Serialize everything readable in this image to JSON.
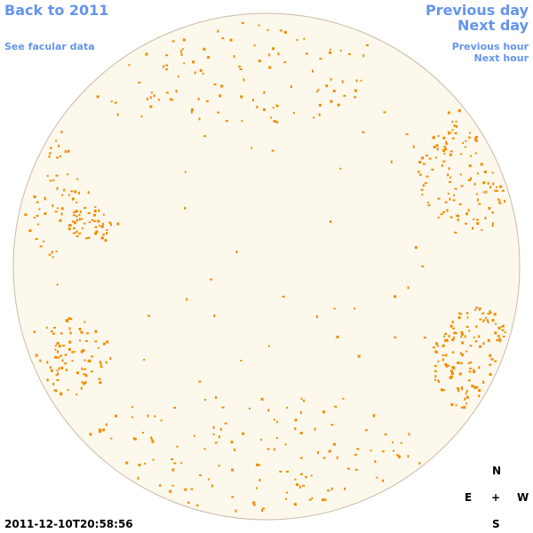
{
  "nav": {
    "back_label": "Back to 2011",
    "prev_day_label": "Previous day",
    "next_day_label": "Next day",
    "facular_label": "See facular data",
    "prev_hour_label": "Previous hour",
    "next_hour_label": "Next hour"
  },
  "compass": {
    "north": "N",
    "east": "E",
    "center": "+",
    "west": "W",
    "south": "S"
  },
  "timestamp": "2011-12-10T20:58:56",
  "colors": {
    "link": "#6495ed",
    "disk_fill": "#fdf8ec",
    "disk_edge": "#c8bba7",
    "feature": "#f08c00",
    "text": "#000000"
  },
  "feature_regions": [
    {
      "name": "east-limb-north-cluster",
      "count": 70
    },
    {
      "name": "east-limb-mid-cluster",
      "count": 45
    },
    {
      "name": "east-limb-south-cluster",
      "count": 90
    },
    {
      "name": "west-limb-north-cluster",
      "count": 150
    },
    {
      "name": "west-limb-south-cluster",
      "count": 170
    },
    {
      "name": "north-polar-band",
      "count": 120
    },
    {
      "name": "south-polar-band",
      "count": 140
    },
    {
      "name": "scattered",
      "count": 60
    }
  ]
}
